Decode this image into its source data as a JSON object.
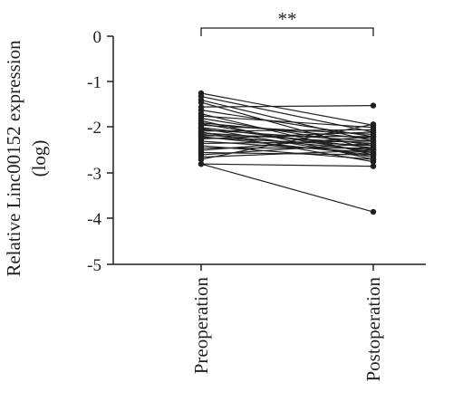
{
  "chart_data": {
    "type": "line",
    "ylabel_line1": "Relative Linc00152 expression",
    "ylabel_line2": "(log)",
    "categories": [
      "Preoperation",
      "Postoperation"
    ],
    "yticks": [
      "0",
      "-1",
      "-2",
      "-3",
      "-4",
      "-5"
    ],
    "ylim": [
      -5,
      0
    ],
    "significance": "**",
    "series": [
      {
        "values": [
          -1.25,
          -1.95
        ]
      },
      {
        "values": [
          -1.32,
          -2.1
        ]
      },
      {
        "values": [
          -1.4,
          -2.3
        ]
      },
      {
        "values": [
          -1.45,
          -2.5
        ]
      },
      {
        "values": [
          -1.55,
          -1.52
        ]
      },
      {
        "values": [
          -1.62,
          -2.2
        ]
      },
      {
        "values": [
          -1.7,
          -2.6
        ]
      },
      {
        "values": [
          -1.75,
          -2.0
        ]
      },
      {
        "values": [
          -1.8,
          -2.4
        ]
      },
      {
        "values": [
          -1.85,
          -2.7
        ]
      },
      {
        "values": [
          -1.9,
          -2.25
        ]
      },
      {
        "values": [
          -1.92,
          -2.55
        ]
      },
      {
        "values": [
          -1.95,
          -2.15
        ]
      },
      {
        "values": [
          -2.0,
          -2.45
        ]
      },
      {
        "values": [
          -2.02,
          -2.65
        ]
      },
      {
        "values": [
          -2.05,
          -2.3
        ]
      },
      {
        "values": [
          -2.08,
          -2.05
        ]
      },
      {
        "values": [
          -2.1,
          -2.75
        ]
      },
      {
        "values": [
          -2.12,
          -2.35
        ]
      },
      {
        "values": [
          -2.15,
          -2.5
        ]
      },
      {
        "values": [
          -2.18,
          -2.2
        ]
      },
      {
        "values": [
          -2.2,
          -2.6
        ]
      },
      {
        "values": [
          -2.22,
          -2.4
        ]
      },
      {
        "values": [
          -2.25,
          -2.1
        ]
      },
      {
        "values": [
          -2.3,
          -2.55
        ]
      },
      {
        "values": [
          -2.35,
          -2.3
        ]
      },
      {
        "values": [
          -2.4,
          -2.7
        ]
      },
      {
        "values": [
          -2.45,
          -2.45
        ]
      },
      {
        "values": [
          -2.5,
          -2.2
        ]
      },
      {
        "values": [
          -2.55,
          -2.6
        ]
      },
      {
        "values": [
          -2.6,
          -2.35
        ]
      },
      {
        "values": [
          -2.65,
          -2.5
        ]
      },
      {
        "values": [
          -2.7,
          -1.93
        ]
      },
      {
        "values": [
          -2.8,
          -3.85
        ]
      },
      {
        "values": [
          -2.8,
          -2.85
        ]
      }
    ]
  }
}
